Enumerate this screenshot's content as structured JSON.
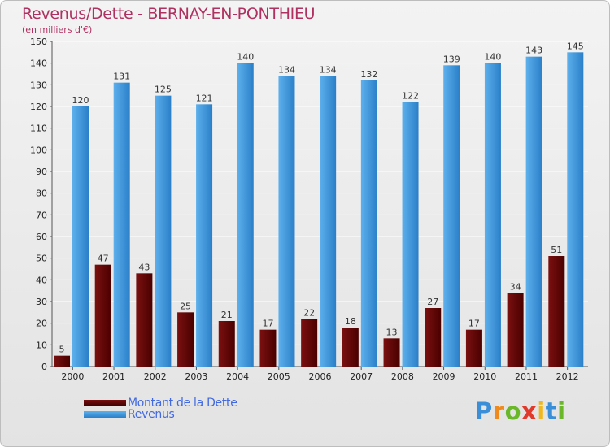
{
  "header": {
    "title": "Revenus/Dette - BERNAY-EN-PONTHIEU",
    "subtitle": "(en milliers d'€)"
  },
  "legend": {
    "debt_label": "Montant de la Dette",
    "revenue_label": "Revenus"
  },
  "logo": {
    "letters": [
      "P",
      "r",
      "o",
      "x",
      "i",
      "t",
      "i"
    ]
  },
  "colors": {
    "title": "#b03060",
    "debt_top": "#9b3a3a",
    "debt_bottom": "#4a0000",
    "revenue_top": "#5db0ec",
    "revenue_bottom": "#2a7fc8",
    "legend_text": "#4169e1",
    "grid": "#ffffff",
    "axis_text": "#222222"
  },
  "chart_data": {
    "type": "bar",
    "title": "Revenus/Dette - BERNAY-EN-PONTHIEU",
    "ylabel": "(en milliers d'€)",
    "xlabel": "",
    "ylim": [
      0,
      150
    ],
    "yticks": [
      0,
      10,
      20,
      30,
      40,
      50,
      60,
      70,
      80,
      90,
      100,
      110,
      120,
      130,
      140,
      150
    ],
    "grid": true,
    "legend_position": "bottom-left",
    "categories": [
      "2000",
      "2001",
      "2002",
      "2003",
      "2004",
      "2005",
      "2006",
      "2007",
      "2008",
      "2009",
      "2010",
      "2011",
      "2012"
    ],
    "series": [
      {
        "name": "Montant de la Dette",
        "values": [
          5,
          47,
          43,
          25,
          21,
          17,
          22,
          18,
          13,
          27,
          17,
          34,
          51
        ]
      },
      {
        "name": "Revenus",
        "values": [
          120,
          131,
          125,
          121,
          140,
          134,
          134,
          132,
          122,
          139,
          140,
          143,
          145
        ]
      }
    ]
  }
}
